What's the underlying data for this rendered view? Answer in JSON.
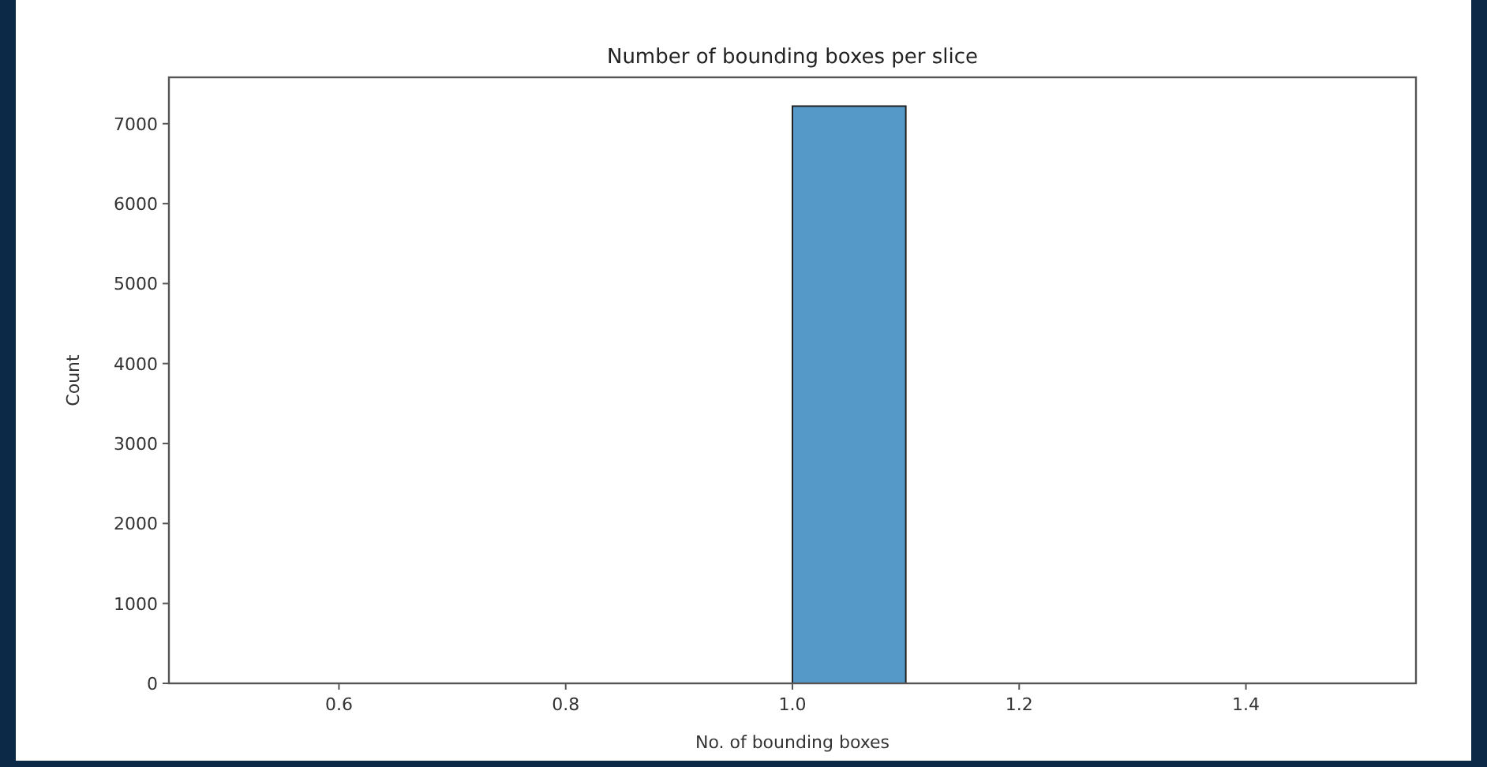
{
  "chart_data": {
    "type": "histogram",
    "title": "Number of bounding boxes per slice",
    "xlabel": "No. of bounding boxes",
    "ylabel": "Count",
    "bins": [
      1.0,
      1.1
    ],
    "values": [
      7220
    ],
    "color": "#5599c8",
    "xlim": [
      0.45,
      1.55
    ],
    "xticks": [
      {
        "value": 0.6,
        "label": "0.6"
      },
      {
        "value": 0.8,
        "label": "0.8"
      },
      {
        "value": 1,
        "label": "1.0"
      },
      {
        "value": 1.2,
        "label": "1.2"
      },
      {
        "value": 1.4,
        "label": "1.4"
      }
    ],
    "ylim": [
      0,
      7580
    ],
    "yticks": [
      0,
      1000,
      2000,
      3000,
      4000,
      5000,
      6000,
      7000
    ],
    "grid": false
  }
}
